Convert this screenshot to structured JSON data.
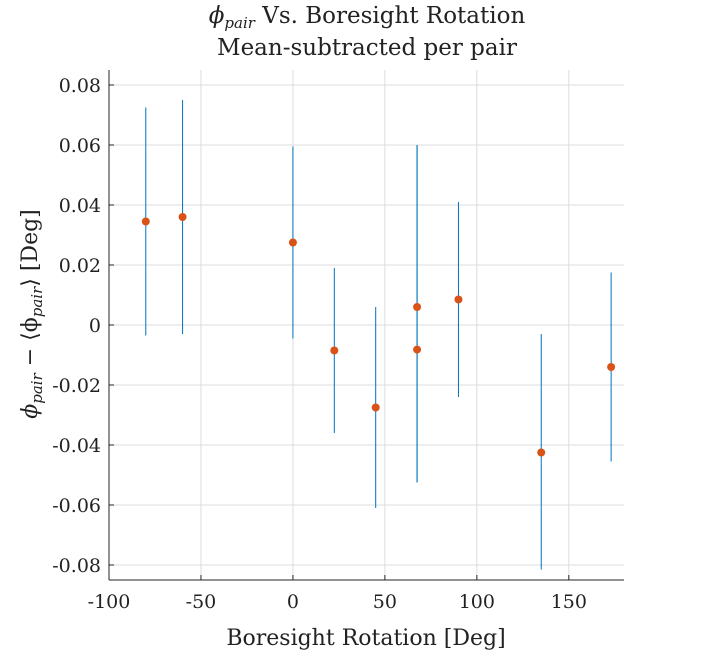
{
  "chart_data": {
    "type": "scatter",
    "title_math": "ϕ",
    "title_sub": "pair",
    "title_rest": " Vs. Boresight Rotation",
    "subtitle": "Mean-subtracted per pair",
    "xlabel": "Boresight Rotation [Deg]",
    "ylabel_main": "ϕ",
    "ylabel_sub": "pair",
    "ylabel_mid": " − ⟨ϕ",
    "ylabel_sub2": "pair",
    "ylabel_end": "⟩ [Deg]",
    "xlim": [
      -100,
      180
    ],
    "ylim": [
      -0.085,
      0.085
    ],
    "xticks": [
      -100,
      -50,
      0,
      50,
      100,
      150
    ],
    "xtick_labels": [
      "-100",
      "-50",
      "0",
      "50",
      "100",
      "150"
    ],
    "yticks": [
      -0.08,
      -0.06,
      -0.04,
      -0.02,
      0,
      0.02,
      0.04,
      0.06,
      0.08
    ],
    "ytick_labels": [
      "-0.08",
      "-0.06",
      "-0.04",
      "-0.02",
      "0",
      "0.02",
      "0.04",
      "0.06",
      "0.08"
    ],
    "grid": true,
    "colors": {
      "points": "#D95319",
      "errorbars": "#0072BD",
      "axis": "#262626",
      "grid": "#dcdcdc"
    },
    "points": [
      {
        "x": -80,
        "y": 0.0345,
        "err_low": -0.0035,
        "err_high": 0.0725
      },
      {
        "x": -60,
        "y": 0.036,
        "err_low": -0.003,
        "err_high": 0.075
      },
      {
        "x": 0,
        "y": 0.0275,
        "err_low": -0.0045,
        "err_high": 0.0595
      },
      {
        "x": 22.5,
        "y": -0.0085,
        "err_low": -0.036,
        "err_high": 0.019
      },
      {
        "x": 45,
        "y": -0.0275,
        "err_low": -0.061,
        "err_high": 0.006
      },
      {
        "x": 67.5,
        "y": 0.006,
        "err_low": -0.0525,
        "err_high": 0.06
      },
      {
        "x": 67.5,
        "y": -0.0082,
        "err_low": -0.0525,
        "err_high": 0.06
      },
      {
        "x": 90,
        "y": 0.0085,
        "err_low": -0.024,
        "err_high": 0.041
      },
      {
        "x": 135,
        "y": -0.0425,
        "err_low": -0.0815,
        "err_high": -0.003
      },
      {
        "x": 173,
        "y": -0.014,
        "err_low": -0.0455,
        "err_high": 0.0175
      }
    ]
  }
}
